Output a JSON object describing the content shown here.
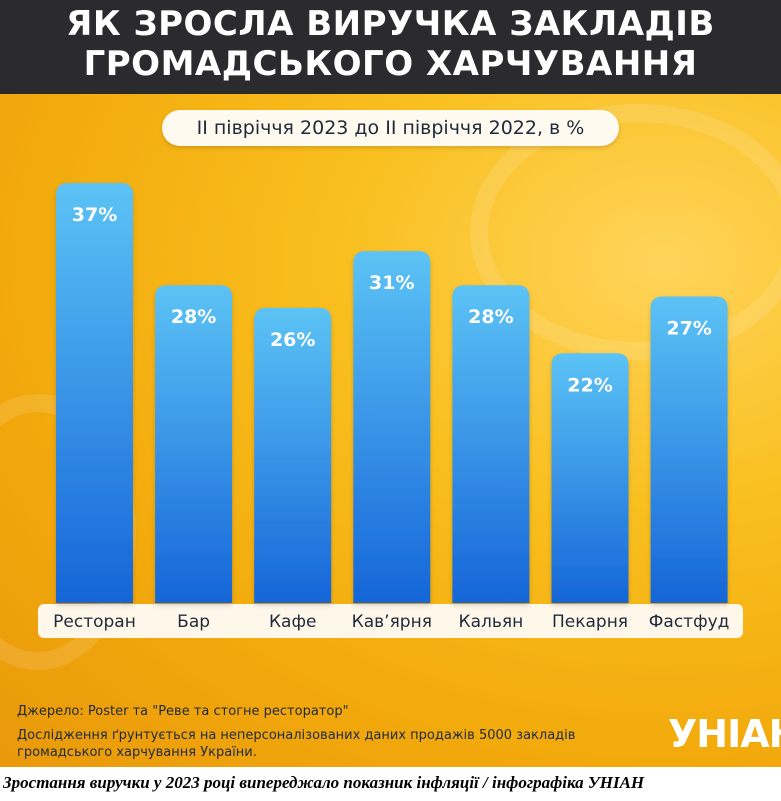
{
  "header": {
    "title_line1": "ЯК ЗРОСЛА ВИРУЧКА ЗАКЛАДІВ",
    "title_line2": "ГРОМАДСЬКОГО ХАРЧУВАННЯ"
  },
  "subtitle": "ІІ півріччя 2023 до ІІ півріччя 2022, в %",
  "chart_data": {
    "type": "bar",
    "title": "ЯК ЗРОСЛА ВИРУЧКА ЗАКЛАДІВ ГРОМАДСЬКОГО ХАРЧУВАННЯ",
    "subtitle": "ІІ півріччя 2023 до ІІ півріччя 2022, в %",
    "categories": [
      "Ресторан",
      "Бар",
      "Кафе",
      "Кав’ярня",
      "Кальян",
      "Пекарня",
      "Фастфуд"
    ],
    "values": [
      37,
      28,
      26,
      31,
      28,
      22,
      27
    ],
    "data_labels": [
      "37%",
      "28%",
      "26%",
      "31%",
      "28%",
      "22%",
      "27%"
    ],
    "unit": "%",
    "ylim": [
      0,
      40
    ],
    "grid": false,
    "colors": {
      "bar_top": "#5cc3f5",
      "bar_bottom": "#1565d8",
      "background": "#f5b312"
    }
  },
  "footer": {
    "source": "Джерело: Poster та \"Реве та стогне ресторатор\"",
    "note": "Дослідження ґрунтується на неперсоналізованих даних продажів 5000 закладів громадського харчування України.",
    "logo": "УНІАН"
  },
  "caption": "Зростання виручки у 2023 році випереджало показник інфляції / інфографіка УНІАН"
}
